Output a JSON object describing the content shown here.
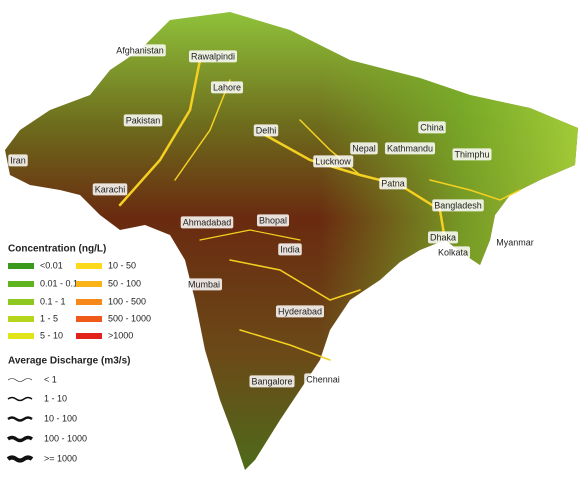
{
  "map": {
    "places": [
      "Afghanistan",
      "Rawalpindi",
      "Lahore",
      "Pakistan",
      "Delhi",
      "Iran",
      "Nepal",
      "Kathmandu",
      "China",
      "Thimphu",
      "Lucknow",
      "Patna",
      "Karachi",
      "Bangladesh",
      "Ahmadabad",
      "Bhopal",
      "India",
      "Dhaka",
      "Kolkata",
      "Myanmar",
      "Mumbai",
      "Hyderabad",
      "Bangalore",
      "Chennai"
    ]
  },
  "legend": {
    "concentration": {
      "title": "Concentration (ng/L)",
      "items": [
        {
          "label": "<0.01",
          "color": "#3a9a1e"
        },
        {
          "label": "0.01 - 0.1",
          "color": "#5fb41f"
        },
        {
          "label": "0.1 - 1",
          "color": "#8cc81f"
        },
        {
          "label": "1 - 5",
          "color": "#b5d61c"
        },
        {
          "label": "5 - 10",
          "color": "#e0e51a"
        },
        {
          "label": "10 - 50",
          "color": "#fcd91b"
        },
        {
          "label": "50 - 100",
          "color": "#fbb418"
        },
        {
          "label": "100 - 500",
          "color": "#f6891a"
        },
        {
          "label": "500 - 1000",
          "color": "#ef5a1a"
        },
        {
          "label": ">1000",
          "color": "#e0221a"
        }
      ]
    },
    "discharge": {
      "title": "Average Discharge (m3/s)",
      "items": [
        {
          "label": "< 1"
        },
        {
          "label": "1 - 10"
        },
        {
          "label": "10 - 100"
        },
        {
          "label": "100 - 1000"
        },
        {
          "label": ">= 1000"
        }
      ]
    }
  }
}
